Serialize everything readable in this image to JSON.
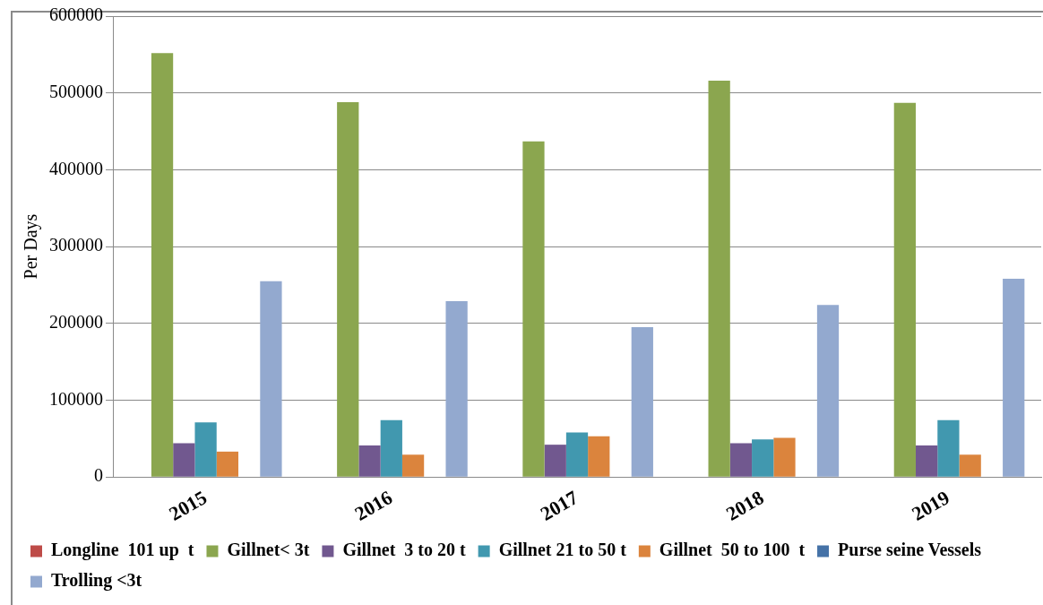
{
  "chart_data": {
    "type": "bar",
    "ylabel": "Per Days",
    "categories": [
      "2015",
      "2016",
      "2017",
      "2018",
      "2019"
    ],
    "series": [
      {
        "name": "Longline  101 up  t",
        "color": "#be4b48",
        "values": [
          0,
          0,
          0,
          0,
          0
        ]
      },
      {
        "name": "Gillnet< 3t",
        "color": "#8ba64f",
        "values": [
          552000,
          488000,
          437000,
          516000,
          487000
        ]
      },
      {
        "name": "Gillnet  3 to 20 t",
        "color": "#71588f",
        "values": [
          44000,
          41000,
          42000,
          44000,
          41000
        ]
      },
      {
        "name": "Gillnet 21 to 50 t",
        "color": "#4198af",
        "values": [
          71000,
          74000,
          58000,
          49000,
          74000
        ]
      },
      {
        "name": "Gillnet  50 to 100  t",
        "color": "#db843d",
        "values": [
          33000,
          29000,
          53000,
          51000,
          29000
        ]
      },
      {
        "name": "Purse seine Vessels",
        "color": "#4572a7",
        "values": [
          0,
          0,
          0,
          0,
          0
        ]
      },
      {
        "name": "Trolling <3t",
        "color": "#93a9cf",
        "values": [
          255000,
          229000,
          195000,
          224000,
          258000
        ]
      }
    ],
    "ylim": [
      0,
      600000
    ],
    "yticks": [
      0,
      100000,
      200000,
      300000,
      400000,
      500000,
      600000
    ],
    "grid": "y",
    "legend": "bottom"
  }
}
